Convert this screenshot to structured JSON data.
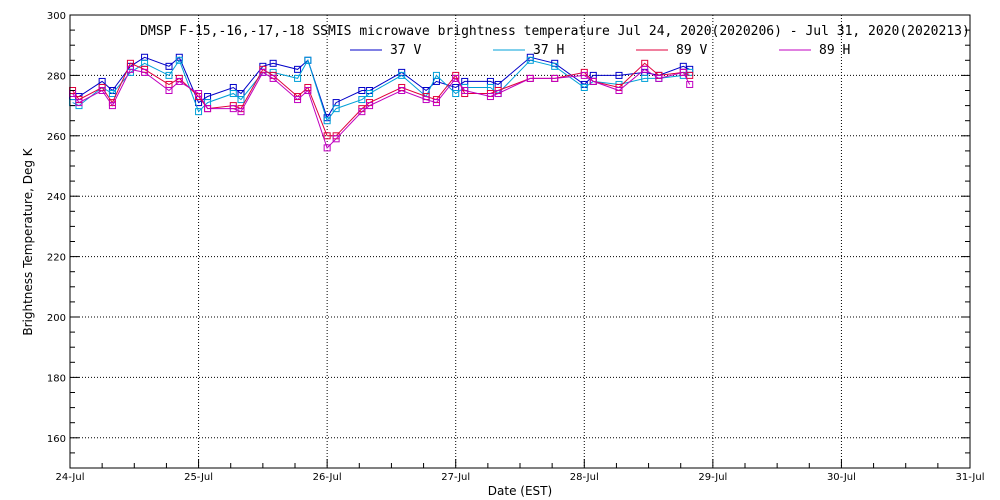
{
  "chart_data": {
    "type": "line",
    "title": "DMSP F-15,-16,-17,-18 SSMIS microwave brightness temperature Jul 24, 2020(2020206) - Jul 31, 2020(2020213)",
    "xlabel": "Date (EST)",
    "ylabel": "Brightness Temperature, Deg K",
    "x_ticks": [
      "24-Jul",
      "25-Jul",
      "26-Jul",
      "27-Jul",
      "28-Jul",
      "29-Jul",
      "30-Jul",
      "31-Jul"
    ],
    "x_range_days": [
      24,
      31
    ],
    "ylim": [
      150,
      300
    ],
    "y_ticks": [
      160,
      180,
      200,
      220,
      240,
      260,
      280,
      300
    ],
    "grid": true,
    "legend_position": "top",
    "series": [
      {
        "name": "37 V",
        "color": "#0000c8",
        "points": [
          [
            24.02,
            273
          ],
          [
            24.07,
            273
          ],
          [
            24.25,
            278
          ],
          [
            24.33,
            275
          ],
          [
            24.47,
            283
          ],
          [
            24.58,
            286
          ],
          [
            24.77,
            283
          ],
          [
            24.85,
            286
          ],
          [
            25.0,
            271
          ],
          [
            25.07,
            273
          ],
          [
            25.27,
            276
          ],
          [
            25.33,
            274
          ],
          [
            25.5,
            283
          ],
          [
            25.58,
            284
          ],
          [
            25.77,
            282
          ],
          [
            25.85,
            285
          ],
          [
            26.0,
            266
          ],
          [
            26.07,
            271
          ],
          [
            26.27,
            275
          ],
          [
            26.33,
            275
          ],
          [
            26.58,
            281
          ],
          [
            26.77,
            275
          ],
          [
            26.85,
            278
          ],
          [
            27.0,
            276
          ],
          [
            27.07,
            278
          ],
          [
            27.27,
            278
          ],
          [
            27.33,
            277
          ],
          [
            27.58,
            286
          ],
          [
            27.77,
            284
          ],
          [
            28.0,
            277
          ],
          [
            28.07,
            280
          ],
          [
            28.27,
            280
          ],
          [
            28.47,
            281
          ],
          [
            28.58,
            280
          ],
          [
            28.77,
            283
          ],
          [
            28.82,
            282
          ]
        ]
      },
      {
        "name": "37 H",
        "color": "#00a0d8",
        "points": [
          [
            24.02,
            271
          ],
          [
            24.07,
            270
          ],
          [
            24.25,
            276
          ],
          [
            24.33,
            274
          ],
          [
            24.47,
            281
          ],
          [
            24.58,
            284
          ],
          [
            24.77,
            280
          ],
          [
            24.85,
            285
          ],
          [
            25.0,
            268
          ],
          [
            25.07,
            271
          ],
          [
            25.27,
            274
          ],
          [
            25.33,
            272
          ],
          [
            25.5,
            281
          ],
          [
            25.58,
            281
          ],
          [
            25.77,
            279
          ],
          [
            25.85,
            285
          ],
          [
            26.0,
            265
          ],
          [
            26.07,
            269
          ],
          [
            26.27,
            272
          ],
          [
            26.33,
            274
          ],
          [
            26.58,
            280
          ],
          [
            26.77,
            273
          ],
          [
            26.85,
            280
          ],
          [
            27.0,
            274
          ],
          [
            27.07,
            276
          ],
          [
            27.27,
            276
          ],
          [
            27.33,
            274
          ],
          [
            27.58,
            285
          ],
          [
            27.77,
            283
          ],
          [
            28.0,
            276
          ],
          [
            28.07,
            278
          ],
          [
            28.27,
            277
          ],
          [
            28.47,
            279
          ],
          [
            28.58,
            279
          ],
          [
            28.77,
            280
          ],
          [
            28.82,
            281
          ]
        ]
      },
      {
        "name": "89 V",
        "color": "#e0003c",
        "points": [
          [
            24.02,
            275
          ],
          [
            24.07,
            272
          ],
          [
            24.25,
            276
          ],
          [
            24.33,
            271
          ],
          [
            24.47,
            284
          ],
          [
            24.58,
            282
          ],
          [
            24.77,
            277
          ],
          [
            24.85,
            279
          ],
          [
            25.0,
            273
          ],
          [
            25.07,
            269
          ],
          [
            25.27,
            270
          ],
          [
            25.33,
            269
          ],
          [
            25.5,
            282
          ],
          [
            25.58,
            280
          ],
          [
            25.77,
            273
          ],
          [
            25.85,
            276
          ],
          [
            26.0,
            260
          ],
          [
            26.07,
            260
          ],
          [
            26.27,
            269
          ],
          [
            26.33,
            271
          ],
          [
            26.58,
            276
          ],
          [
            26.77,
            273
          ],
          [
            26.85,
            272
          ],
          [
            27.0,
            280
          ],
          [
            27.07,
            274
          ],
          [
            27.27,
            274
          ],
          [
            27.33,
            275
          ],
          [
            27.58,
            279
          ],
          [
            27.77,
            279
          ],
          [
            28.0,
            281
          ],
          [
            28.07,
            278
          ],
          [
            28.27,
            276
          ],
          [
            28.47,
            284
          ],
          [
            28.58,
            280
          ],
          [
            28.77,
            281
          ],
          [
            28.82,
            280
          ]
        ]
      },
      {
        "name": "89 H",
        "color": "#c000c0",
        "points": [
          [
            24.02,
            274
          ],
          [
            24.07,
            271
          ],
          [
            24.25,
            275
          ],
          [
            24.33,
            270
          ],
          [
            24.47,
            282
          ],
          [
            24.58,
            281
          ],
          [
            24.77,
            275
          ],
          [
            24.85,
            278
          ],
          [
            25.0,
            274
          ],
          [
            25.07,
            269
          ],
          [
            25.27,
            269
          ],
          [
            25.33,
            268
          ],
          [
            25.5,
            281
          ],
          [
            25.58,
            279
          ],
          [
            25.77,
            272
          ],
          [
            25.85,
            275
          ],
          [
            26.0,
            256
          ],
          [
            26.07,
            259
          ],
          [
            26.27,
            268
          ],
          [
            26.33,
            270
          ],
          [
            26.58,
            275
          ],
          [
            26.77,
            272
          ],
          [
            26.85,
            271
          ],
          [
            27.0,
            279
          ],
          [
            27.07,
            275
          ],
          [
            27.27,
            273
          ],
          [
            27.33,
            274
          ],
          [
            27.58,
            279
          ],
          [
            27.77,
            279
          ],
          [
            28.0,
            280
          ],
          [
            28.07,
            278
          ],
          [
            28.27,
            275
          ],
          [
            28.47,
            282
          ],
          [
            28.58,
            279
          ],
          [
            28.77,
            281
          ],
          [
            28.82,
            277
          ]
        ]
      }
    ]
  }
}
